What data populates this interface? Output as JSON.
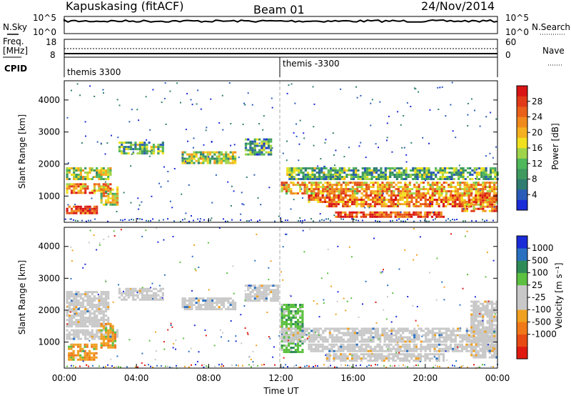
{
  "header": {
    "station": "Kapuskasing (fitACF)",
    "beam": "Beam 01",
    "date": "24/Nov/2014"
  },
  "top_panels": {
    "nsky_label": "N.Sky",
    "nsky_ticks": [
      "10^5",
      "10^0"
    ],
    "nsearch_label": "N.Search",
    "nsearch_ticks": [
      "10^5",
      "10^0"
    ],
    "freq_label": "Freq.",
    "freq_unit": "[MHz]",
    "freq_ticks": [
      "18",
      "8"
    ],
    "nave_label": "Nave",
    "nave_ticks": [
      "60",
      "0"
    ],
    "cpid_label": "CPID",
    "cpid_segments": [
      {
        "label": "themis 3300",
        "start_hour": 0
      },
      {
        "label": "themis -3300",
        "start_hour": 12
      }
    ]
  },
  "chart_data": [
    {
      "type": "heatmap",
      "name": "power",
      "ylabel": "Slant Range [km]",
      "yticks": [
        1000,
        2000,
        3000,
        4000
      ],
      "ylim": [
        180,
        4600
      ],
      "xlim_hours": [
        0,
        24
      ],
      "colorbar": {
        "label": "Power [dB]",
        "range": [
          0,
          32
        ],
        "ticks": [
          "4",
          "8",
          "12",
          "16",
          "20",
          "24",
          "28"
        ],
        "colors": [
          "#1a2bd8",
          "#2a5bb8",
          "#2e7d70",
          "#3f9a60",
          "#4fb85a",
          "#9fd44a",
          "#f0e020",
          "#f4b020",
          "#f08a1c",
          "#e8601a",
          "#e03a18",
          "#d81414"
        ]
      },
      "bands": [
        {
          "t0": 0.1,
          "t1": 2.6,
          "r0": 1100,
          "r1": 1400,
          "level": 0.7
        },
        {
          "t0": 0.1,
          "t1": 2.6,
          "r0": 1500,
          "r1": 1900,
          "level": 0.45
        },
        {
          "t0": 0.1,
          "t1": 1.8,
          "r0": 450,
          "r1": 700,
          "level": 0.9
        },
        {
          "t0": 2.0,
          "t1": 2.9,
          "r0": 700,
          "r1": 1300,
          "level": 0.55
        },
        {
          "t0": 3.0,
          "t1": 5.5,
          "r0": 2350,
          "r1": 2700,
          "level": 0.35
        },
        {
          "t0": 6.5,
          "t1": 9.5,
          "r0": 2000,
          "r1": 2400,
          "level": 0.45
        },
        {
          "t0": 10.0,
          "t1": 11.5,
          "r0": 2300,
          "r1": 2800,
          "level": 0.3
        },
        {
          "t0": 12.0,
          "t1": 24.0,
          "r0": 1100,
          "r1": 1450,
          "level": 0.65
        },
        {
          "t0": 12.3,
          "t1": 24.0,
          "r0": 1500,
          "r1": 1900,
          "level": 0.35
        },
        {
          "t0": 13.5,
          "t1": 24.0,
          "r0": 800,
          "r1": 1050,
          "level": 0.75
        },
        {
          "t0": 14.5,
          "t1": 22.5,
          "r0": 650,
          "r1": 780,
          "level": 0.8
        },
        {
          "t0": 15.0,
          "t1": 21.0,
          "r0": 380,
          "r1": 520,
          "level": 0.85
        },
        {
          "t0": 22.0,
          "t1": 24.0,
          "r0": 500,
          "r1": 900,
          "level": 0.7
        }
      ]
    },
    {
      "type": "heatmap",
      "name": "velocity",
      "ylabel": "Slant Range [km]",
      "yticks": [
        1000,
        2000,
        3000,
        4000
      ],
      "ylim": [
        180,
        4600
      ],
      "xlim_hours": [
        0,
        24
      ],
      "xticks": [
        "00:00",
        "04:00",
        "08:00",
        "12:00",
        "16:00",
        "20:00",
        "00:00"
      ],
      "xlabel": "Time UT",
      "colorbar": {
        "label": "Velocity [m s⁻¹]",
        "ticks": [
          "1000",
          "500",
          "100",
          "25",
          "-25",
          "-100",
          "-500",
          "-1000"
        ],
        "colors": [
          "#1a2bd8",
          "#2a70c0",
          "#2e8b57",
          "#5cc040",
          "#c8c8c8",
          "#c8c8c8",
          "#f0a020",
          "#f07818",
          "#e84a14",
          "#e01a10"
        ]
      },
      "bands": [
        {
          "t0": 0.1,
          "t1": 3.0,
          "r0": 1100,
          "r1": 1400,
          "kind": "gray"
        },
        {
          "t0": 0.1,
          "t1": 2.4,
          "r0": 1500,
          "r1": 2600,
          "kind": "gray"
        },
        {
          "t0": 0.2,
          "t1": 1.8,
          "r0": 450,
          "r1": 950,
          "kind": "orange"
        },
        {
          "t0": 2.0,
          "t1": 2.8,
          "r0": 800,
          "r1": 1600,
          "kind": "orange"
        },
        {
          "t0": 3.0,
          "t1": 5.5,
          "r0": 2350,
          "r1": 2700,
          "kind": "gray"
        },
        {
          "t0": 6.5,
          "t1": 9.5,
          "r0": 2000,
          "r1": 2400,
          "kind": "gray"
        },
        {
          "t0": 10.0,
          "t1": 11.8,
          "r0": 2300,
          "r1": 2800,
          "kind": "gray"
        },
        {
          "t0": 12.0,
          "t1": 13.2,
          "r0": 700,
          "r1": 2200,
          "kind": "green"
        },
        {
          "t0": 12.0,
          "t1": 24.0,
          "r0": 1000,
          "r1": 1450,
          "kind": "gray"
        },
        {
          "t0": 13.5,
          "t1": 24.0,
          "r0": 700,
          "r1": 950,
          "kind": "gray"
        },
        {
          "t0": 14.5,
          "t1": 21.0,
          "r0": 400,
          "r1": 650,
          "kind": "gray"
        },
        {
          "t0": 22.5,
          "t1": 24.0,
          "r0": 500,
          "r1": 2300,
          "kind": "gray"
        }
      ]
    }
  ]
}
